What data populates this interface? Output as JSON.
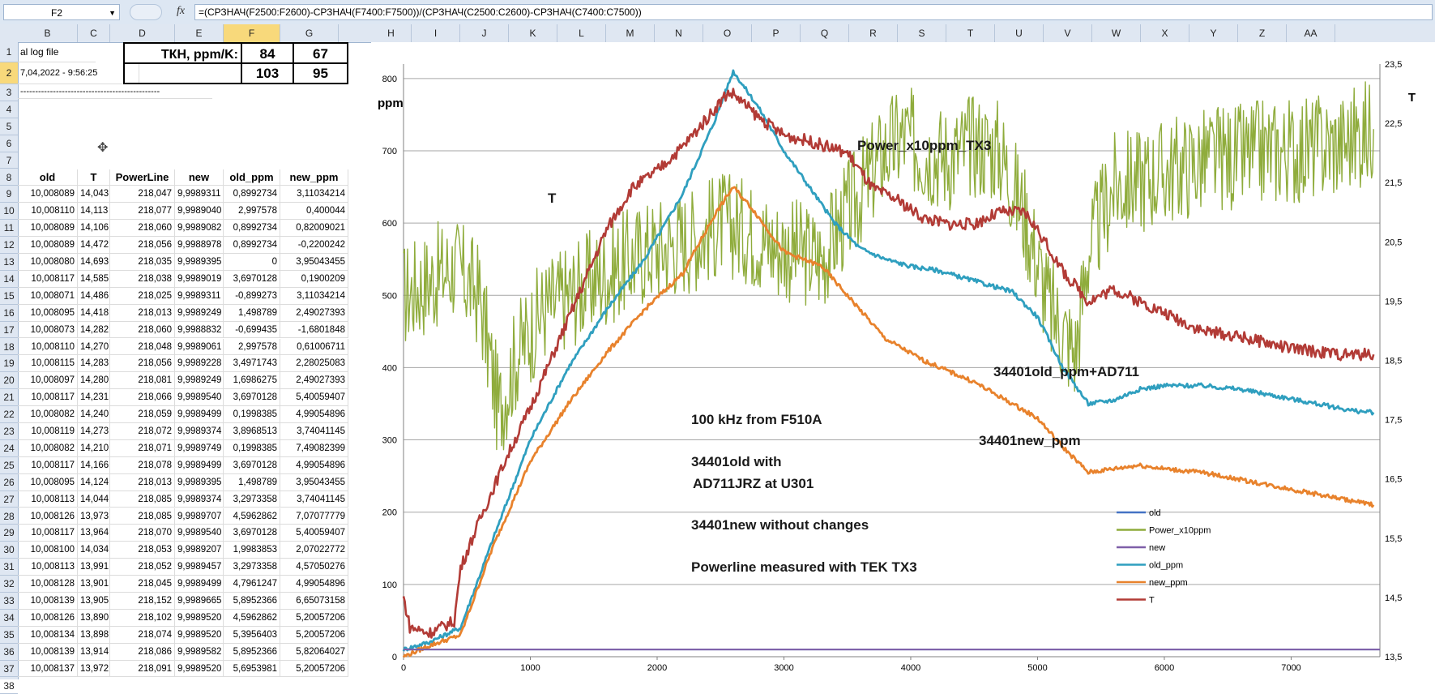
{
  "formula_bar": {
    "name_box": "F2",
    "fx": "fx",
    "formula": "=(СРЗНАЧ(F2500:F2600)-СРЗНАЧ(F7400:F7500))/(СРЗНАЧ(C2500:C2600)-СРЗНАЧ(C7400:C7500))"
  },
  "columns": [
    "B",
    "C",
    "D",
    "E",
    "F",
    "G",
    "H",
    "I",
    "J",
    "K",
    "L",
    "M",
    "N",
    "O",
    "P",
    "Q",
    "R",
    "S",
    "T",
    "U",
    "V",
    "W",
    "X",
    "Y",
    "Z",
    "AA"
  ],
  "rows": [
    "1",
    "2",
    "3",
    "4",
    "5",
    "6",
    "7",
    "8",
    "9",
    "10",
    "11",
    "12",
    "13",
    "14",
    "15",
    "16",
    "17",
    "18",
    "19",
    "20",
    "21",
    "22",
    "23",
    "24",
    "25",
    "26",
    "27",
    "28",
    "29",
    "30",
    "31",
    "32",
    "33",
    "34",
    "35",
    "36",
    "37",
    "38"
  ],
  "sheet": {
    "b1": "al log file",
    "b2": "7,04,2022 - 9:56:25",
    "b3": "-----------------------------------------------",
    "tkh_label": "ТКН, ppm/K:",
    "f1": "84",
    "g1": "67",
    "f2": "103",
    "g2": "95",
    "headers": [
      "old",
      "T",
      "PowerLine",
      "new",
      "old_ppm",
      "new_ppm"
    ],
    "data": [
      [
        "10,008089",
        "14,043",
        "218,047",
        "9,9989311",
        "0,8992734",
        "3,11034214"
      ],
      [
        "10,008110",
        "14,113",
        "218,077",
        "9,9989040",
        "2,997578",
        "0,400044"
      ],
      [
        "10,008089",
        "14,106",
        "218,060",
        "9,9989082",
        "0,8992734",
        "0,82009021"
      ],
      [
        "10,008089",
        "14,472",
        "218,056",
        "9,9988978",
        "0,8992734",
        "-0,2200242"
      ],
      [
        "10,008080",
        "14,693",
        "218,035",
        "9,9989395",
        "0",
        "3,95043455"
      ],
      [
        "10,008117",
        "14,585",
        "218,038",
        "9,9989019",
        "3,6970128",
        "0,1900209"
      ],
      [
        "10,008071",
        "14,486",
        "218,025",
        "9,9989311",
        "-0,899273",
        "3,11034214"
      ],
      [
        "10,008095",
        "14,418",
        "218,013",
        "9,9989249",
        "1,498789",
        "2,49027393"
      ],
      [
        "10,008073",
        "14,282",
        "218,060",
        "9,9988832",
        "-0,699435",
        "-1,6801848"
      ],
      [
        "10,008110",
        "14,270",
        "218,048",
        "9,9989061",
        "2,997578",
        "0,61006711"
      ],
      [
        "10,008115",
        "14,283",
        "218,056",
        "9,9989228",
        "3,4971743",
        "2,28025083"
      ],
      [
        "10,008097",
        "14,280",
        "218,081",
        "9,9989249",
        "1,6986275",
        "2,49027393"
      ],
      [
        "10,008117",
        "14,231",
        "218,066",
        "9,9989540",
        "3,6970128",
        "5,40059407"
      ],
      [
        "10,008082",
        "14,240",
        "218,059",
        "9,9989499",
        "0,1998385",
        "4,99054896"
      ],
      [
        "10,008119",
        "14,273",
        "218,072",
        "9,9989374",
        "3,8968513",
        "3,74041145"
      ],
      [
        "10,008082",
        "14,210",
        "218,071",
        "9,9989749",
        "0,1998385",
        "7,49082399"
      ],
      [
        "10,008117",
        "14,166",
        "218,078",
        "9,9989499",
        "3,6970128",
        "4,99054896"
      ],
      [
        "10,008095",
        "14,124",
        "218,013",
        "9,9989395",
        "1,498789",
        "3,95043455"
      ],
      [
        "10,008113",
        "14,044",
        "218,085",
        "9,9989374",
        "3,2973358",
        "3,74041145"
      ],
      [
        "10,008126",
        "13,973",
        "218,085",
        "9,9989707",
        "4,5962862",
        "7,07077779"
      ],
      [
        "10,008117",
        "13,964",
        "218,070",
        "9,9989540",
        "3,6970128",
        "5,40059407"
      ],
      [
        "10,008100",
        "14,034",
        "218,053",
        "9,9989207",
        "1,9983853",
        "2,07022772"
      ],
      [
        "10,008113",
        "13,991",
        "218,052",
        "9,9989457",
        "3,2973358",
        "4,57050276"
      ],
      [
        "10,008128",
        "13,901",
        "218,045",
        "9,9989499",
        "4,7961247",
        "4,99054896"
      ],
      [
        "10,008139",
        "13,905",
        "218,152",
        "9,9989665",
        "5,8952366",
        "6,65073158"
      ],
      [
        "10,008126",
        "13,890",
        "218,102",
        "9,9989520",
        "4,5962862",
        "5,20057206"
      ],
      [
        "10,008134",
        "13,898",
        "218,074",
        "9,9989520",
        "5,3956403",
        "5,20057206"
      ],
      [
        "10,008139",
        "13,914",
        "218,086",
        "9,9989582",
        "5,8952366",
        "5,82064027"
      ],
      [
        "10,008137",
        "13,972",
        "218,091",
        "9,9989520",
        "5,6953981",
        "5,20057206"
      ]
    ]
  },
  "chart_data": {
    "type": "line",
    "ylabel": "ppm",
    "y2label": "T",
    "xlim": [
      0,
      7700
    ],
    "ylim": [
      0,
      820
    ],
    "y2lim": [
      13.5,
      23.5
    ],
    "x_ticks": [
      "0",
      "1000",
      "2000",
      "3000",
      "4000",
      "5000",
      "6000",
      "7000"
    ],
    "y_ticks": [
      "0",
      "100",
      "200",
      "300",
      "400",
      "500",
      "600",
      "700",
      "800"
    ],
    "y2_ticks": [
      "13,5",
      "14,5",
      "15,5",
      "16,5",
      "17,5",
      "18,5",
      "19,5",
      "20,5",
      "21,5",
      "22,5",
      "23,5"
    ],
    "grid": true,
    "legend_position": "bottom-right",
    "series": [
      {
        "name": "old",
        "color": "#4472c4",
        "axis": "left",
        "x": [
          0,
          7700
        ],
        "y": [
          10,
          10
        ]
      },
      {
        "name": "Power_x10ppm",
        "color": "#8fac3c",
        "axis": "left",
        "x": [
          0,
          200,
          400,
          600,
          750,
          900,
          1100,
          1300,
          1500,
          1700,
          1900,
          2100,
          2300,
          2500,
          2700,
          2900,
          3100,
          3300,
          3450,
          3600,
          3800,
          3950,
          4100,
          4300,
          4500,
          4700,
          4900,
          5100,
          5300,
          5400,
          5600,
          5800,
          6000,
          6200,
          6400,
          6600,
          6800,
          7000,
          7200,
          7400,
          7650
        ],
        "y": [
          500,
          520,
          540,
          500,
          340,
          420,
          480,
          500,
          520,
          540,
          560,
          570,
          580,
          600,
          590,
          570,
          560,
          550,
          600,
          640,
          700,
          720,
          700,
          690,
          710,
          700,
          610,
          480,
          420,
          560,
          650,
          660,
          670,
          680,
          690,
          690,
          700,
          700,
          705,
          710,
          730
        ]
      },
      {
        "name": "new",
        "color": "#7f5fa8",
        "axis": "left",
        "x": [
          0,
          7700
        ],
        "y": [
          10,
          10
        ]
      },
      {
        "name": "old_ppm",
        "color": "#2f9fbf",
        "axis": "left",
        "x": [
          0,
          200,
          450,
          700,
          1000,
          1300,
          1600,
          1900,
          2200,
          2450,
          2600,
          2800,
          3000,
          3200,
          3400,
          3600,
          3800,
          4000,
          4200,
          4500,
          4800,
          5000,
          5200,
          5400,
          5600,
          5800,
          6000,
          6300,
          6600,
          6900,
          7200,
          7500,
          7650
        ],
        "y": [
          10,
          20,
          40,
          160,
          300,
          400,
          480,
          550,
          640,
          740,
          810,
          760,
          700,
          650,
          600,
          565,
          550,
          540,
          535,
          520,
          505,
          470,
          400,
          350,
          355,
          370,
          375,
          375,
          370,
          360,
          350,
          340,
          338
        ]
      },
      {
        "name": "new_ppm",
        "color": "#e8822c",
        "axis": "left",
        "x": [
          0,
          200,
          450,
          700,
          1000,
          1300,
          1600,
          1900,
          2200,
          2450,
          2600,
          2750,
          3000,
          3300,
          3500,
          3800,
          4100,
          4500,
          4800,
          5000,
          5200,
          5400,
          5600,
          5800,
          6000,
          6300,
          6600,
          6900,
          7200,
          7500,
          7650
        ],
        "y": [
          0,
          15,
          30,
          150,
          270,
          350,
          420,
          480,
          530,
          610,
          650,
          620,
          560,
          540,
          500,
          440,
          410,
          380,
          350,
          330,
          290,
          255,
          260,
          265,
          260,
          255,
          245,
          235,
          225,
          215,
          210
        ]
      },
      {
        "name": "T",
        "color": "#b23b36",
        "axis": "right",
        "x": [
          0,
          50,
          200,
          400,
          450,
          600,
          800,
          1000,
          1200,
          1400,
          1600,
          1800,
          2000,
          2200,
          2400,
          2550,
          2600,
          2800,
          3000,
          3200,
          3500,
          3700,
          3900,
          4100,
          4300,
          4500,
          4700,
          4900,
          5000,
          5200,
          5400,
          5600,
          5800,
          6000,
          6300,
          6600,
          7000,
          7400,
          7650
        ],
        "y": [
          14.5,
          14.0,
          13.9,
          14.1,
          15.0,
          15.8,
          16.8,
          17.7,
          18.7,
          19.7,
          20.7,
          21.4,
          21.7,
          22.1,
          22.6,
          23.0,
          23.0,
          22.6,
          22.3,
          22.2,
          22.0,
          21.4,
          21.2,
          20.9,
          20.8,
          20.8,
          21.0,
          21.0,
          20.7,
          20.0,
          19.5,
          19.7,
          19.5,
          19.3,
          19.0,
          18.9,
          18.7,
          18.6,
          18.6
        ]
      }
    ],
    "annotations": [
      "Power_x10ppm_TX3",
      "T",
      "34401old_ppm+AD711",
      "100 kHz from F510A",
      "34401new_ppm",
      "34401old with",
      "AD711JRZ at U301",
      "34401new without changes",
      "Powerline measured with TEK TX3"
    ]
  }
}
